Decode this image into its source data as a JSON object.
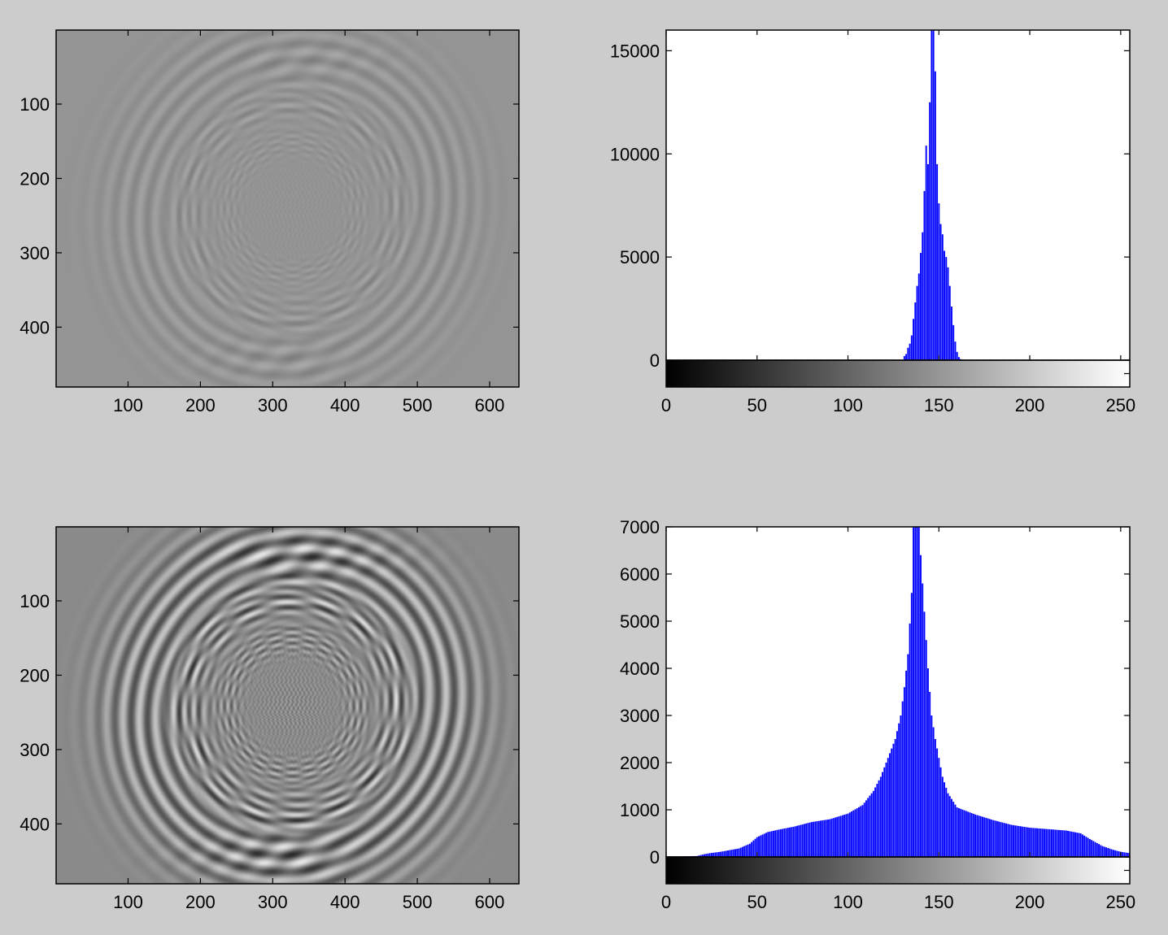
{
  "chart_data": [
    {
      "type": "heatmap",
      "title": "",
      "xlabel": "",
      "ylabel": "",
      "xlim": [
        0.5,
        640.5
      ],
      "ylim": [
        0.5,
        480.5
      ],
      "xticks": [
        100,
        200,
        300,
        400,
        500,
        600
      ],
      "yticks": [
        100,
        200,
        300,
        400
      ],
      "contrast": "low",
      "description_values": {
        "base_gray": 148,
        "swirl_amplitude": 0.12
      }
    },
    {
      "type": "bar",
      "title": "",
      "xlabel": "",
      "ylabel": "",
      "xlim": [
        0,
        255
      ],
      "ylim": [
        0,
        16000
      ],
      "xticks": [
        0,
        50,
        100,
        150,
        200,
        250
      ],
      "yticks": [
        0,
        5000,
        10000,
        15000
      ],
      "colorbar": "grayscale",
      "bar_color": "#0000ff",
      "x_start": 131,
      "values": [
        200,
        300,
        600,
        800,
        1200,
        2000,
        2800,
        3600,
        4200,
        5200,
        6200,
        8200,
        10400,
        9500,
        12500,
        16000,
        16000,
        14000,
        9500,
        7600,
        6600,
        6100,
        5300,
        5000,
        4500,
        3600,
        2600,
        1700,
        900,
        400,
        150,
        50
      ]
    },
    {
      "type": "heatmap",
      "title": "",
      "xlabel": "",
      "ylabel": "",
      "xlim": [
        0.5,
        640.5
      ],
      "ylim": [
        0.5,
        480.5
      ],
      "xticks": [
        100,
        200,
        300,
        400,
        500,
        600
      ],
      "yticks": [
        100,
        200,
        300,
        400
      ],
      "contrast": "high",
      "description_values": {
        "base_gray": 138,
        "swirl_amplitude": 0.55
      }
    },
    {
      "type": "bar",
      "title": "",
      "xlabel": "",
      "ylabel": "",
      "xlim": [
        0,
        255
      ],
      "ylim": [
        0,
        7000
      ],
      "xticks": [
        0,
        50,
        100,
        150,
        200,
        250
      ],
      "yticks": [
        0,
        1000,
        2000,
        3000,
        4000,
        5000,
        6000,
        7000
      ],
      "colorbar": "grayscale",
      "bar_color": "#0000ff",
      "profile_points": [
        [
          0,
          0
        ],
        [
          17,
          20
        ],
        [
          20,
          50
        ],
        [
          24,
          80
        ],
        [
          30,
          110
        ],
        [
          40,
          180
        ],
        [
          46,
          280
        ],
        [
          50,
          420
        ],
        [
          56,
          530
        ],
        [
          62,
          580
        ],
        [
          70,
          640
        ],
        [
          80,
          740
        ],
        [
          90,
          800
        ],
        [
          100,
          920
        ],
        [
          108,
          1100
        ],
        [
          114,
          1400
        ],
        [
          118,
          1700
        ],
        [
          122,
          2100
        ],
        [
          126,
          2500
        ],
        [
          129,
          3000
        ],
        [
          131,
          3600
        ],
        [
          133,
          4300
        ],
        [
          135,
          5600
        ],
        [
          136,
          7000
        ],
        [
          139,
          7000
        ],
        [
          140,
          6400
        ],
        [
          142,
          5200
        ],
        [
          144,
          4000
        ],
        [
          146,
          3000
        ],
        [
          148,
          2500
        ],
        [
          150,
          2100
        ],
        [
          152,
          1700
        ],
        [
          155,
          1350
        ],
        [
          160,
          1050
        ],
        [
          170,
          900
        ],
        [
          180,
          780
        ],
        [
          190,
          680
        ],
        [
          200,
          620
        ],
        [
          210,
          590
        ],
        [
          220,
          560
        ],
        [
          228,
          500
        ],
        [
          233,
          380
        ],
        [
          240,
          230
        ],
        [
          246,
          150
        ],
        [
          250,
          110
        ],
        [
          255,
          80
        ]
      ]
    }
  ]
}
